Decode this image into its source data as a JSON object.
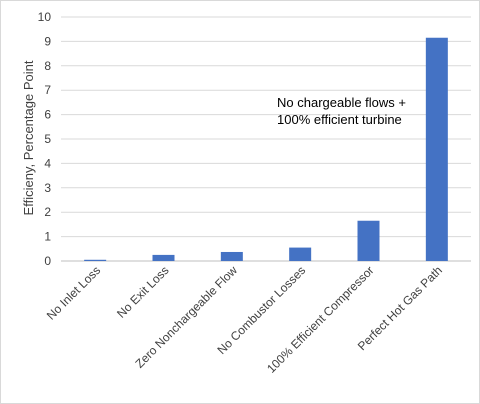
{
  "chart_data": {
    "type": "bar",
    "title": "",
    "xlabel": "",
    "ylabel": "Efficieny, Percentage Point",
    "ylim": [
      0,
      10
    ],
    "yticks": [
      0,
      1,
      2,
      3,
      4,
      5,
      6,
      7,
      8,
      9,
      10
    ],
    "grid": true,
    "categories": [
      "No Inlet Loss",
      "No Exit Loss",
      "Zero Nonchargeable Flow",
      "No Combustor Losses",
      "100% Efficient Compressor",
      "Perfect Hot Gas Path"
    ],
    "values": [
      0.05,
      0.25,
      0.37,
      0.55,
      1.65,
      9.15
    ],
    "bar_color": "#4472C4",
    "annotation": {
      "lines": [
        "No chargeable flows +",
        "100% efficient turbine"
      ]
    }
  }
}
